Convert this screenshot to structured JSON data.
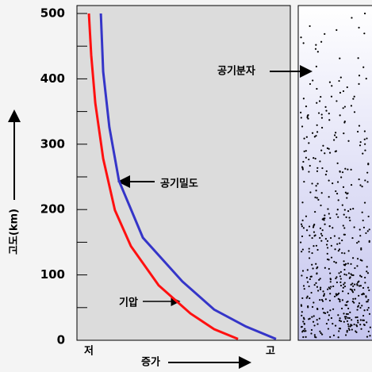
{
  "chart_data": {
    "type": "line",
    "y_label": "고도(km)",
    "x_label": "증가",
    "x_low_label": "저",
    "x_high_label": "고",
    "ylim": [
      0,
      500
    ],
    "yticks": [
      0,
      100,
      200,
      300,
      400,
      500
    ],
    "yminor": [
      50,
      150,
      250,
      350,
      450
    ],
    "xlim": [
      0,
      1
    ],
    "series": [
      {
        "name": "기압",
        "color": "#ff1010",
        "x": [
          0.755,
          0.643,
          0.532,
          0.383,
          0.253,
          0.178,
          0.123,
          0.086,
          0.067,
          0.056
        ],
        "values": [
          2,
          17,
          41,
          84,
          144,
          199,
          278,
          363,
          436,
          500
        ]
      },
      {
        "name": "공기밀도",
        "color": "#3535c8",
        "x": [
          0.933,
          0.792,
          0.643,
          0.494,
          0.309,
          0.197,
          0.152,
          0.123,
          0.112
        ],
        "values": [
          2,
          21,
          47,
          90,
          157,
          244,
          326,
          411,
          500
        ]
      }
    ],
    "panel_label": "공기분자"
  }
}
